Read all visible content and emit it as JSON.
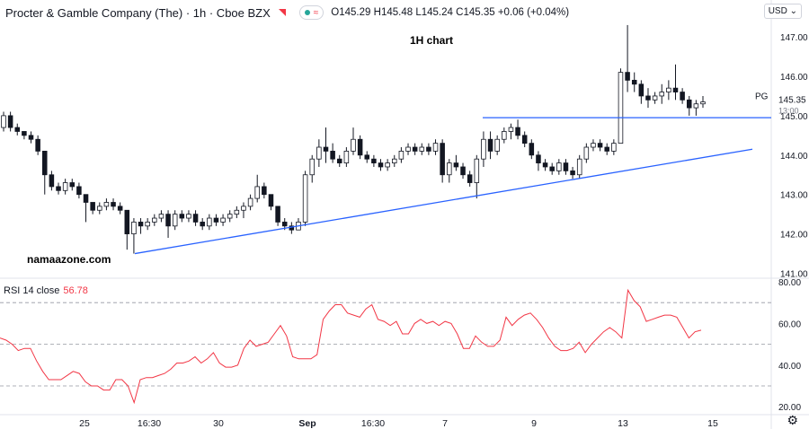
{
  "header": {
    "symbol": "Procter & Gamble Company (The) · 1h · Cboe BZX",
    "open_label": "O",
    "open": "145.29",
    "high_label": "H",
    "high": "145.48",
    "low_label": "L",
    "low": "145.24",
    "close_label": "C",
    "close": "145.35",
    "change": "+0.06 (+0.04%)",
    "wave_glyph": "≈"
  },
  "annotation": {
    "text": "1H  chart"
  },
  "watermark": {
    "text": "namaazone.com"
  },
  "currency_selector": {
    "label": "USD",
    "icon": "chevron-down-icon"
  },
  "colors": {
    "up": "#131722",
    "down": "#131722",
    "trendline": "#2962ff",
    "rsi": "#f23645",
    "accent_red": "#f23645",
    "live_dot": "#26a69a"
  },
  "rsi_panel": {
    "label": "RSI 14 close",
    "value": "56.78"
  },
  "settings_icon": "gear-icon",
  "chart_data": [
    {
      "type": "candlestick",
      "title": "",
      "xlabel": "",
      "ylabel": "",
      "x_ticks": [
        "25",
        "16:30",
        "30",
        "Sep",
        "16:30",
        "7",
        "9",
        "13",
        "15"
      ],
      "y_ticks": [
        "141.00",
        "142.00",
        "143.00",
        "144.00",
        "145.00",
        "146.00",
        "147.00"
      ],
      "ylim": [
        141.0,
        147.2
      ],
      "price_tag": {
        "symbol": "PG",
        "price": "145.35",
        "countdown": "13:00"
      },
      "grid": false,
      "candles": [
        [
          144.7,
          145.1,
          144.6,
          145.0
        ],
        [
          145.0,
          145.1,
          144.6,
          144.7
        ],
        [
          144.7,
          144.8,
          144.5,
          144.6
        ],
        [
          144.6,
          144.6,
          144.4,
          144.5
        ],
        [
          144.5,
          144.6,
          144.3,
          144.4
        ],
        [
          144.4,
          144.5,
          144.0,
          144.1
        ],
        [
          144.1,
          144.1,
          143.0,
          143.5
        ],
        [
          143.5,
          143.6,
          143.1,
          143.2
        ],
        [
          143.2,
          143.3,
          143.0,
          143.1
        ],
        [
          143.1,
          143.4,
          143.0,
          143.3
        ],
        [
          143.3,
          143.4,
          143.1,
          143.2
        ],
        [
          143.2,
          143.3,
          142.9,
          143.0
        ],
        [
          143.0,
          143.0,
          142.3,
          142.8
        ],
        [
          142.8,
          142.8,
          142.5,
          142.6
        ],
        [
          142.6,
          142.8,
          142.5,
          142.7
        ],
        [
          142.7,
          142.9,
          142.6,
          142.8
        ],
        [
          142.8,
          142.9,
          142.6,
          142.7
        ],
        [
          142.7,
          142.8,
          142.5,
          142.6
        ],
        [
          142.6,
          142.6,
          141.6,
          142.0
        ],
        [
          142.0,
          142.4,
          141.5,
          142.3
        ],
        [
          142.3,
          142.4,
          142.0,
          142.2
        ],
        [
          142.2,
          142.4,
          142.1,
          142.3
        ],
        [
          142.3,
          142.5,
          142.2,
          142.4
        ],
        [
          142.4,
          142.6,
          142.3,
          142.5
        ],
        [
          142.5,
          142.6,
          141.9,
          142.2
        ],
        [
          142.2,
          142.6,
          142.1,
          142.5
        ],
        [
          142.5,
          142.6,
          142.3,
          142.4
        ],
        [
          142.4,
          142.6,
          142.3,
          142.5
        ],
        [
          142.5,
          142.6,
          142.2,
          142.3
        ],
        [
          142.3,
          142.4,
          142.1,
          142.2
        ],
        [
          142.2,
          142.5,
          142.1,
          142.4
        ],
        [
          142.4,
          142.5,
          142.2,
          142.3
        ],
        [
          142.3,
          142.5,
          142.2,
          142.4
        ],
        [
          142.4,
          142.6,
          142.3,
          142.5
        ],
        [
          142.5,
          142.7,
          142.4,
          142.6
        ],
        [
          142.6,
          142.8,
          142.4,
          142.7
        ],
        [
          142.7,
          143.0,
          142.6,
          142.9
        ],
        [
          142.9,
          143.5,
          142.8,
          143.2
        ],
        [
          143.2,
          143.3,
          142.9,
          143.0
        ],
        [
          143.0,
          143.0,
          142.6,
          142.7
        ],
        [
          142.7,
          142.7,
          142.2,
          142.3
        ],
        [
          142.3,
          142.4,
          142.1,
          142.2
        ],
        [
          142.2,
          142.3,
          142.0,
          142.1
        ],
        [
          142.1,
          142.4,
          142.1,
          142.3
        ],
        [
          142.3,
          143.6,
          142.2,
          143.5
        ],
        [
          143.5,
          144.0,
          143.3,
          143.9
        ],
        [
          143.9,
          144.4,
          143.7,
          144.2
        ],
        [
          144.2,
          144.7,
          143.8,
          144.1
        ],
        [
          144.1,
          144.3,
          143.8,
          143.9
        ],
        [
          143.9,
          144.0,
          143.7,
          143.8
        ],
        [
          143.8,
          144.2,
          143.7,
          144.1
        ],
        [
          144.1,
          144.7,
          144.0,
          144.4
        ],
        [
          144.4,
          144.5,
          143.9,
          144.0
        ],
        [
          144.0,
          144.1,
          143.8,
          143.9
        ],
        [
          143.9,
          144.0,
          143.7,
          143.8
        ],
        [
          143.8,
          143.9,
          143.6,
          143.7
        ],
        [
          143.7,
          143.9,
          143.6,
          143.8
        ],
        [
          143.8,
          144.0,
          143.7,
          143.9
        ],
        [
          143.9,
          144.2,
          143.8,
          144.1
        ],
        [
          144.1,
          144.3,
          144.0,
          144.2
        ],
        [
          144.2,
          144.3,
          144.0,
          144.1
        ],
        [
          144.1,
          144.3,
          144.0,
          144.2
        ],
        [
          144.2,
          144.3,
          144.0,
          144.1
        ],
        [
          144.1,
          144.4,
          144.0,
          144.3
        ],
        [
          144.3,
          144.4,
          143.3,
          143.5
        ],
        [
          143.5,
          143.9,
          143.3,
          143.8
        ],
        [
          143.8,
          144.0,
          143.6,
          143.7
        ],
        [
          143.7,
          143.8,
          143.4,
          143.5
        ],
        [
          143.5,
          143.6,
          143.2,
          143.3
        ],
        [
          143.3,
          144.0,
          142.9,
          143.9
        ],
        [
          143.9,
          144.6,
          143.7,
          144.4
        ],
        [
          144.4,
          144.6,
          143.9,
          144.1
        ],
        [
          144.1,
          144.5,
          144.0,
          144.4
        ],
        [
          144.4,
          144.7,
          144.3,
          144.6
        ],
        [
          144.6,
          144.8,
          144.4,
          144.7
        ],
        [
          144.7,
          144.9,
          144.4,
          144.5
        ],
        [
          144.5,
          144.6,
          144.2,
          144.3
        ],
        [
          144.3,
          144.4,
          143.9,
          144.0
        ],
        [
          144.0,
          144.1,
          143.6,
          143.8
        ],
        [
          143.8,
          143.9,
          143.6,
          143.7
        ],
        [
          143.7,
          143.8,
          143.5,
          143.6
        ],
        [
          143.6,
          143.9,
          143.5,
          143.8
        ],
        [
          143.8,
          143.9,
          143.5,
          143.6
        ],
        [
          143.6,
          143.7,
          143.4,
          143.5
        ],
        [
          143.5,
          144.0,
          143.4,
          143.9
        ],
        [
          143.9,
          144.3,
          143.8,
          144.2
        ],
        [
          144.2,
          144.4,
          144.1,
          144.3
        ],
        [
          144.3,
          144.4,
          144.1,
          144.2
        ],
        [
          144.2,
          144.3,
          144.0,
          144.1
        ],
        [
          144.1,
          144.4,
          144.0,
          144.3
        ],
        [
          144.3,
          146.2,
          144.3,
          146.1
        ],
        [
          146.1,
          147.3,
          145.6,
          145.9
        ],
        [
          145.9,
          146.1,
          145.6,
          145.8
        ],
        [
          145.8,
          145.9,
          145.3,
          145.5
        ],
        [
          145.5,
          145.7,
          145.2,
          145.4
        ],
        [
          145.4,
          145.6,
          145.3,
          145.5
        ],
        [
          145.5,
          145.8,
          145.3,
          145.6
        ],
        [
          145.6,
          145.9,
          145.4,
          145.7
        ],
        [
          145.7,
          146.3,
          145.4,
          145.6
        ],
        [
          145.6,
          145.7,
          145.3,
          145.4
        ],
        [
          145.4,
          145.5,
          145.0,
          145.2
        ],
        [
          145.2,
          145.4,
          145.0,
          145.3
        ],
        [
          145.3,
          145.5,
          145.2,
          145.35
        ]
      ]
    },
    {
      "type": "line",
      "title": "RSI 14 close",
      "x_ticks": [
        "25",
        "16:30",
        "30",
        "Sep",
        "16:30",
        "7",
        "9",
        "13",
        "15"
      ],
      "y_ticks": [
        "20.00",
        "40.00",
        "60.00",
        "80.00"
      ],
      "ylim": [
        15,
        82
      ],
      "levels": [
        70,
        50,
        30
      ],
      "series": [
        {
          "values": [
            53,
            52,
            50,
            47,
            48,
            48,
            42,
            37,
            33,
            33,
            33,
            35,
            37,
            36,
            32,
            30,
            30,
            28,
            28,
            33,
            33,
            30,
            22,
            33,
            34,
            34,
            35,
            36,
            38,
            41,
            41,
            42,
            44,
            41,
            43,
            46,
            41,
            39,
            39,
            40,
            48,
            52,
            49,
            50,
            51,
            55,
            59,
            54,
            44,
            43,
            43,
            43,
            45,
            62,
            66,
            69,
            69,
            65,
            64,
            63,
            67,
            69,
            62,
            61,
            59,
            61,
            55,
            55,
            60,
            62,
            60,
            61,
            59,
            61,
            60,
            55,
            48,
            48,
            54,
            51,
            49,
            49,
            52,
            63,
            59,
            62,
            64,
            65,
            62,
            58,
            53,
            49,
            47,
            47,
            48,
            51,
            46,
            50,
            53,
            56,
            58,
            56,
            53,
            76,
            71,
            68,
            61,
            62,
            63,
            64,
            64,
            63,
            58,
            53,
            56,
            56.78
          ]
        }
      ]
    }
  ]
}
